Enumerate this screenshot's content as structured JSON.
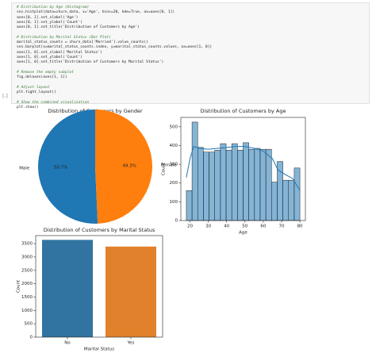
{
  "code_cell": {
    "blocks": [
      [
        "# Distribution by Age (Histogram)",
        "sns.histplot(data=churn_data, x='Age', bins=20, kde=True, ax=axes[0, 1])",
        "axes[0, 1].set_xlabel('Age')",
        "axes[0, 1].set_ylabel('Count')",
        "axes[0, 1].set_title('Distribution of Customers by Age')"
      ],
      [
        "# Distribution by Marital Status (Bar Plot)",
        "marital_status_counts = churn_data['Married'].value_counts()",
        "sns.barplot(x=marital_status_counts.index, y=marital_status_counts.values, ax=axes[1, 0])",
        "axes[1, 0].set_xlabel('Marital Status')",
        "axes[1, 0].set_ylabel('Count')",
        "axes[1, 0].set_title('Distribution of Customers by Marital Status')"
      ],
      [
        "# Remove the empty subplot",
        "fig.delaxes(axes[1, 1])"
      ],
      [
        "# Adjust layout",
        "plt.tight_layout()"
      ],
      [
        "# Show the combined visualization",
        "plt.show()"
      ]
    ]
  },
  "chart_data": [
    {
      "type": "pie",
      "title": "Distribution of Customers by Gender",
      "categories": [
        "Male",
        "Female"
      ],
      "values": [
        50.7,
        49.3
      ],
      "value_labels": [
        "50.7%",
        "49.3%"
      ],
      "colors": [
        "#1f77b4",
        "#ff7f0e"
      ]
    },
    {
      "type": "histogram",
      "title": "Distribution of Customers by Age",
      "x_label": "Age",
      "y_label": "Count",
      "bins": [
        18,
        21.1,
        24.2,
        27.3,
        30.4,
        33.5,
        36.6,
        39.7,
        42.8,
        45.9,
        49,
        52.1,
        55.2,
        58.3,
        61.4,
        64.5,
        67.6,
        70.7,
        73.8,
        76.9,
        80
      ],
      "values": [
        160,
        525,
        390,
        365,
        365,
        375,
        410,
        375,
        410,
        375,
        415,
        380,
        385,
        380,
        380,
        205,
        315,
        215,
        215,
        280
      ],
      "color": "#1f77b4",
      "kde": {
        "x": [
          18,
          20,
          22,
          25,
          30,
          35,
          40,
          45,
          50,
          55,
          60,
          65,
          68,
          72,
          76,
          80
        ],
        "values": [
          230,
          330,
          395,
          385,
          380,
          385,
          390,
          395,
          395,
          385,
          370,
          330,
          270,
          245,
          225,
          160
        ]
      },
      "xlim": [
        15,
        83
      ],
      "ylim": [
        0,
        550
      ],
      "xticks": [
        20,
        30,
        40,
        50,
        60,
        70,
        80
      ],
      "yticks": [
        0,
        100,
        200,
        300,
        400,
        500
      ]
    },
    {
      "type": "bar",
      "title": "Distribution of Customers by Marital Status",
      "x_label": "Marital Status",
      "y_label": "Count",
      "categories": [
        "No",
        "Yes"
      ],
      "values": [
        3640,
        3390
      ],
      "colors": [
        "#3274a1",
        "#e1812c"
      ],
      "ylim": [
        0,
        3800
      ],
      "yticks": [
        0,
        500,
        1000,
        1500,
        2000,
        2500,
        3000,
        3500
      ]
    }
  ]
}
